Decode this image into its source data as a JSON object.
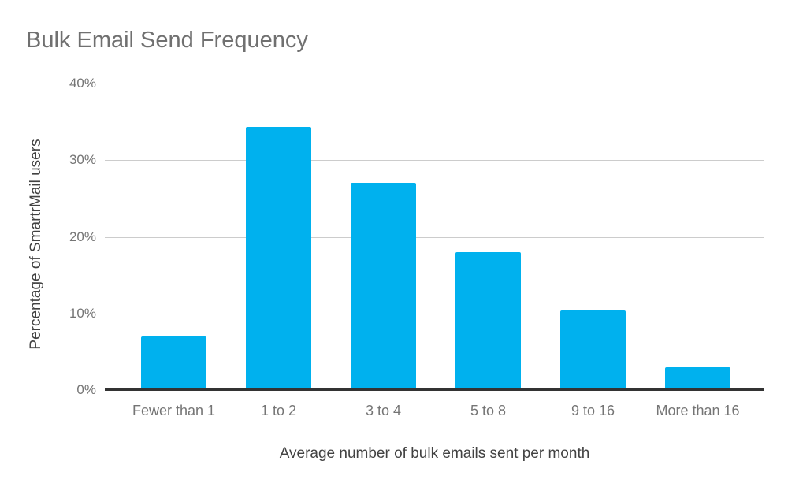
{
  "chart_data": {
    "type": "bar",
    "title": "Bulk Email Send Frequency",
    "xlabel": "Average number of bulk emails sent per month",
    "ylabel": "Percentage of SmartrMail users",
    "categories": [
      "Fewer than 1",
      "1 to 2",
      "3 to 4",
      "5 to 8",
      "9 to 16",
      "More than 16"
    ],
    "values": [
      7,
      34.3,
      27,
      18,
      10.4,
      3
    ],
    "ylim": [
      0,
      40
    ],
    "yticks": [
      {
        "value": 0,
        "label": "0%"
      },
      {
        "value": 10,
        "label": "10%"
      },
      {
        "value": 20,
        "label": "20%"
      },
      {
        "value": 30,
        "label": "30%"
      },
      {
        "value": 40,
        "label": "40%"
      }
    ],
    "grid": true,
    "legend": "none",
    "colors": {
      "bar": "#00b1ee",
      "title_text": "#707070",
      "axis_title_text": "#424242",
      "tick_text": "#757575",
      "gridline": "#cccccc",
      "axis_line": "#333333",
      "background": "#ffffff"
    }
  }
}
